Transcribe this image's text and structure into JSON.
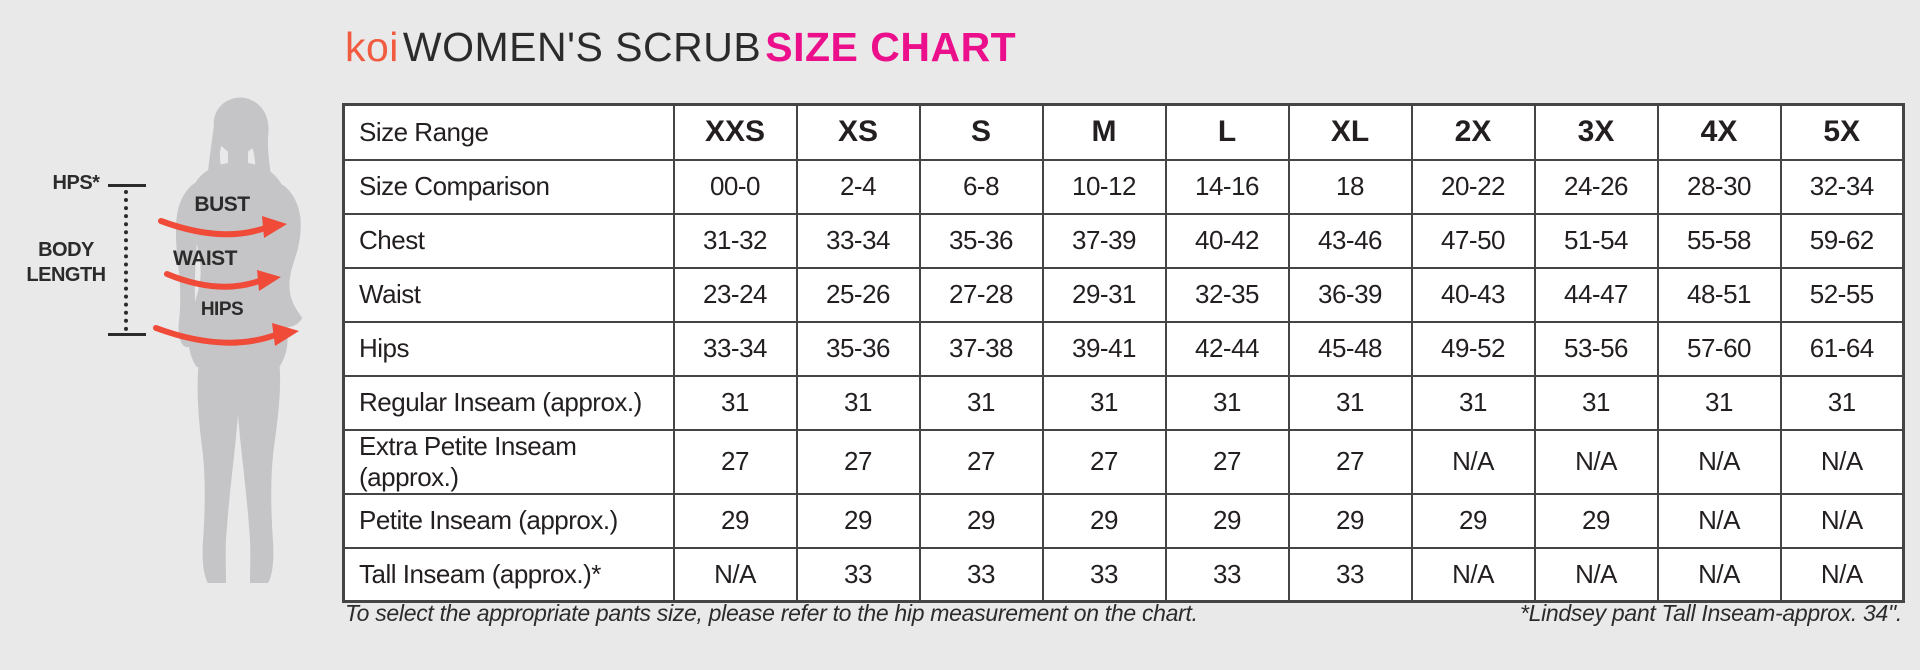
{
  "title": {
    "brand": "koi",
    "middle": "WOMEN'S SCRUB",
    "highlight": "SIZE CHART",
    "brand_color": "#f15b40",
    "highlight_color": "#ec0f8b"
  },
  "figure": {
    "hps_label": "HPS*",
    "body_length_label": "BODY LENGTH",
    "bust_label": "BUST",
    "waist_label": "WAIST",
    "hips_label": "HIPS",
    "arrow_color": "#f04a38",
    "silhouette_color": "#c5c5c7"
  },
  "table": {
    "shaded_color": "#d2d2d3",
    "header": {
      "label": "Size Range",
      "sizes": [
        "XXS",
        "XS",
        "S",
        "M",
        "L",
        "XL",
        "2X",
        "3X",
        "4X",
        "5X"
      ]
    },
    "rows": [
      {
        "label": "Size Comparison",
        "values": [
          "00-0",
          "2-4",
          "6-8",
          "10-12",
          "14-16",
          "18",
          "20-22",
          "24-26",
          "28-30",
          "32-34"
        ]
      },
      {
        "label": "Chest",
        "values": [
          "31-32",
          "33-34",
          "35-36",
          "37-39",
          "40-42",
          "43-46",
          "47-50",
          "51-54",
          "55-58",
          "59-62"
        ]
      },
      {
        "label": "Waist",
        "values": [
          "23-24",
          "25-26",
          "27-28",
          "29-31",
          "32-35",
          "36-39",
          "40-43",
          "44-47",
          "48-51",
          "52-55"
        ]
      },
      {
        "label": "Hips",
        "values": [
          "33-34",
          "35-36",
          "37-38",
          "39-41",
          "42-44",
          "45-48",
          "49-52",
          "53-56",
          "57-60",
          "61-64"
        ]
      },
      {
        "label": "Regular Inseam (approx.)",
        "values": [
          "31",
          "31",
          "31",
          "31",
          "31",
          "31",
          "31",
          "31",
          "31",
          "31"
        ]
      },
      {
        "label": "Extra Petite Inseam (approx.)",
        "values": [
          "27",
          "27",
          "27",
          "27",
          "27",
          "27",
          "N/A",
          "N/A",
          "N/A",
          "N/A"
        ]
      },
      {
        "label": "Petite Inseam (approx.)",
        "values": [
          "29",
          "29",
          "29",
          "29",
          "29",
          "29",
          "29",
          "29",
          "N/A",
          "N/A"
        ]
      },
      {
        "label": "Tall Inseam (approx.)*",
        "values": [
          "N/A",
          "33",
          "33",
          "33",
          "33",
          "33",
          "N/A",
          "N/A",
          "N/A",
          "N/A"
        ]
      }
    ]
  },
  "footnotes": {
    "left": "To select the appropriate pants size, please refer to the hip measurement on the chart.",
    "right": "*Lindsey pant Tall Inseam-approx. 34\"."
  }
}
